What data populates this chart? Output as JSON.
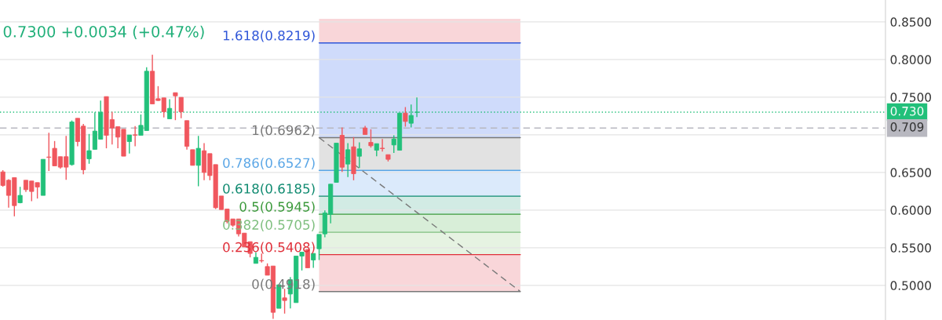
{
  "chart_data": {
    "type": "candlestick",
    "categories": [
      null,
      null,
      null,
      null,
      null,
      null,
      null,
      null,
      null,
      null,
      null,
      null,
      null,
      null,
      null,
      null,
      null,
      null,
      null,
      null,
      null,
      null,
      null,
      null,
      null,
      null,
      null,
      null,
      null,
      null,
      null,
      null,
      null,
      null,
      null,
      null,
      null,
      null,
      null,
      null,
      null,
      null,
      null,
      null,
      null,
      null,
      null,
      null,
      null,
      null,
      null,
      null,
      null,
      null,
      null,
      null,
      null,
      null,
      null,
      null,
      null,
      null,
      null,
      null,
      null,
      null,
      null,
      null,
      null,
      null,
      null,
      null,
      null,
      null,
      null,
      null,
      null,
      null,
      null,
      null,
      null,
      null,
      null,
      null,
      null,
      null,
      null,
      null,
      null,
      null,
      null,
      null,
      null,
      null,
      null,
      null,
      null,
      null,
      null,
      null,
      null,
      null,
      null,
      null,
      null,
      null,
      null,
      null,
      null,
      null,
      null,
      null,
      null,
      null,
      null,
      null,
      null,
      null,
      null,
      null,
      null,
      null,
      null,
      null,
      null,
      null,
      null,
      null,
      null,
      null,
      null,
      null,
      null,
      null,
      null,
      null,
      null,
      null,
      null,
      null,
      null,
      null,
      null,
      null,
      null,
      null,
      null,
      null,
      null,
      null,
      null,
      null,
      null,
      null
    ],
    "ohlc": [
      [
        0.6507,
        0.653,
        0.631,
        0.6327
      ],
      [
        0.6396,
        0.641,
        0.6031,
        0.6195
      ],
      [
        0.6431,
        0.6431,
        0.5917,
        0.6059
      ],
      [
        0.6097,
        0.6309,
        0.609,
        0.6195
      ],
      [
        0.6396,
        0.6396,
        0.624,
        0.6271
      ],
      [
        0.6386,
        0.6386,
        0.6118,
        0.6247
      ],
      [
        0.6365,
        0.6365,
        0.6153,
        0.6306
      ],
      [
        0.6195,
        0.6674,
        0.6195,
        0.6674
      ],
      [
        0.6705,
        0.7028,
        0.6518,
        0.67
      ],
      [
        0.682,
        0.6917,
        0.6587,
        0.6587
      ],
      [
        0.6709,
        0.6709,
        0.655,
        0.657
      ],
      [
        0.6709,
        0.6986,
        0.6403,
        0.657
      ],
      [
        0.6604,
        0.719,
        0.659,
        0.717
      ],
      [
        0.7219,
        0.7219,
        0.6848,
        0.691
      ],
      [
        0.7115,
        0.7143,
        0.6476,
        0.6535
      ],
      [
        0.6681,
        0.7011,
        0.6615,
        0.6789
      ],
      [
        0.6806,
        0.7299,
        0.6806,
        0.7049
      ],
      [
        0.6941,
        0.7455,
        0.6941,
        0.7299
      ],
      [
        0.7507,
        0.7507,
        0.682,
        0.6993
      ],
      [
        0.7202,
        0.7306,
        0.6872,
        0.709
      ],
      [
        0.7108,
        0.7108,
        0.682,
        0.6969
      ],
      [
        0.7073,
        0.7073,
        0.6716,
        0.6716
      ],
      [
        0.691,
        0.6997,
        0.675,
        0.6997
      ],
      [
        0.6999,
        0.7115,
        0.6848,
        0.6995
      ],
      [
        0.6993,
        0.727,
        0.6993,
        0.7125
      ],
      [
        0.7056,
        0.7896,
        0.7056,
        0.7844
      ],
      [
        0.7844,
        0.8063,
        0.741,
        0.741
      ],
      [
        0.7479,
        0.7646,
        0.745,
        0.7455
      ],
      [
        0.749,
        0.749,
        0.7229,
        0.7306
      ],
      [
        0.7212,
        0.7472,
        0.7212,
        0.7351
      ],
      [
        0.7559,
        0.7559,
        0.7194,
        0.7517
      ],
      [
        0.7497,
        0.7497,
        0.7219,
        0.7306
      ],
      [
        0.7188,
        0.7188,
        0.6802,
        0.6847
      ],
      [
        0.6802,
        0.6802,
        0.6594,
        0.6594
      ],
      [
        0.6594,
        0.6986,
        0.6316,
        0.682
      ],
      [
        0.6788,
        0.6889,
        0.6396,
        0.65
      ],
      [
        0.675,
        0.675,
        0.6396,
        0.6458
      ],
      [
        0.6604,
        0.6604,
        0.6014,
        0.6031
      ],
      [
        0.6187,
        0.6187,
        0.6007,
        0.6007
      ],
      [
        0.6014,
        0.6014,
        0.5823,
        0.5847
      ],
      [
        0.5882,
        0.5882,
        0.5778,
        0.5799
      ],
      [
        0.5882,
        0.5882,
        0.5649,
        0.5684
      ],
      [
        0.5694,
        0.5694,
        0.551,
        0.551
      ],
      [
        0.558,
        0.558,
        0.5372,
        0.5424
      ],
      [
        0.5292,
        0.5441,
        0.5292,
        0.5372
      ],
      [
        0.533,
        0.5424,
        0.5302,
        0.5325
      ],
      [
        0.525,
        0.5292,
        0.5135,
        0.5135
      ],
      [
        0.5257,
        0.5257,
        0.4556,
        0.4642
      ],
      [
        0.4695,
        0.5007,
        0.4695,
        0.5007
      ],
      [
        0.4834,
        0.4955,
        0.4625,
        0.4799
      ],
      [
        0.4885,
        0.5111,
        0.4694,
        0.5076
      ],
      [
        0.4771,
        0.5389,
        0.4771,
        0.5389
      ],
      [
        0.5389,
        0.5441,
        0.5198,
        0.5441
      ],
      [
        0.5476,
        0.5476,
        0.5233,
        0.5233
      ],
      [
        0.5337,
        0.5424,
        0.5233,
        0.5424
      ],
      [
        0.5486,
        0.5677,
        0.5337,
        0.5677
      ],
      [
        0.5684,
        0.5997,
        0.5639,
        0.5962
      ],
      [
        0.5944,
        0.6344,
        0.5823,
        0.6344
      ],
      [
        0.6368,
        0.6889,
        0.6368,
        0.6889
      ],
      [
        0.6993,
        0.7097,
        0.6507,
        0.6569
      ],
      [
        0.6611,
        0.6889,
        0.6438,
        0.6802
      ],
      [
        0.684,
        0.6969,
        0.6396,
        0.6483
      ],
      [
        0.6715,
        0.6899,
        0.6559,
        0.6813
      ],
      [
        0.709,
        0.7118,
        0.7003,
        0.7003
      ],
      [
        0.6899,
        0.7073,
        0.683,
        0.6854
      ],
      [
        0.6795,
        0.6882,
        0.6715,
        0.6882
      ],
      [
        0.6822,
        0.6944,
        0.6778,
        0.6816
      ],
      [
        0.6736,
        0.6736,
        0.6646,
        0.6674
      ],
      [
        0.6865,
        0.6993,
        0.676,
        0.6944
      ],
      [
        0.6795,
        0.7288,
        0.6795,
        0.7288
      ],
      [
        0.7288,
        0.7368,
        0.7108,
        0.7177
      ],
      [
        0.7153,
        0.7403,
        0.7097,
        0.7257
      ],
      [
        0.7299,
        0.7497,
        0.7236,
        0.73
      ],
      null,
      null,
      null,
      null,
      null,
      null,
      null,
      null,
      null,
      null,
      null,
      null,
      null,
      null,
      null,
      null,
      null,
      null,
      null,
      null,
      null,
      null,
      null,
      null,
      null,
      null,
      null,
      null,
      null,
      null,
      null,
      null,
      null,
      null,
      null,
      null,
      null,
      null,
      null,
      null,
      null,
      null,
      null,
      null,
      null,
      null,
      null,
      null,
      null,
      null,
      null,
      null,
      null,
      null,
      null,
      null,
      null,
      null,
      null,
      null,
      null,
      null,
      null,
      null,
      null,
      null,
      null,
      null,
      null,
      null,
      null,
      null,
      null,
      null,
      null,
      null,
      null,
      null,
      null,
      null,
      null
    ],
    "colors": [
      "#f0575e",
      "#f0575e",
      "#f0575e",
      "#22c07a",
      "#f0575e",
      "#f0575e",
      "#f0575e",
      "#22c07a",
      "#f0575e",
      "#f0575e",
      "#f0575e",
      "#f0575e",
      "#22c07a",
      "#f0575e",
      "#f0575e",
      "#22c07a",
      "#22c07a",
      "#22c07a",
      "#f0575e",
      "#f0575e",
      "#f0575e",
      "#f0575e",
      "#22c07a",
      "#f0575e",
      "#22c07a",
      "#22c07a",
      "#f0575e",
      "#f0575e",
      "#f0575e",
      "#22c07a",
      "#f0575e",
      "#f0575e",
      "#f0575e",
      "#f0575e",
      "#22c07a",
      "#f0575e",
      "#f0575e",
      "#f0575e",
      "#f0575e",
      "#f0575e",
      "#f0575e",
      "#f0575e",
      "#f0575e",
      "#f0575e",
      "#22c07a",
      "#f0575e",
      "#f0575e",
      "#f0575e",
      "#22c07a",
      "#f0575e",
      "#22c07a",
      "#22c07a",
      "#22c07a",
      "#f0575e",
      "#22c07a",
      "#22c07a",
      "#22c07a",
      "#22c07a",
      "#22c07a",
      "#f0575e",
      "#22c07a",
      "#f0575e",
      "#22c07a",
      "#f0575e",
      "#f0575e",
      "#22c07a",
      "#f0575e",
      "#f0575e",
      "#22c07a",
      "#22c07a",
      "#f0575e",
      "#22c07a",
      "#22c07a",
      null,
      null,
      null,
      null,
      null,
      null,
      null,
      null,
      null,
      null,
      null,
      null,
      null,
      null,
      null,
      null,
      null,
      null,
      null,
      null,
      null,
      null,
      null,
      null,
      null,
      null,
      null,
      null,
      null,
      null,
      null,
      null,
      null,
      null,
      null,
      null,
      null,
      null,
      null,
      null,
      null,
      null,
      null,
      null,
      null,
      null,
      null,
      null,
      null,
      null,
      null,
      null,
      null,
      null,
      null,
      null,
      null,
      null,
      null,
      null,
      null,
      null,
      null,
      null,
      null,
      null,
      null,
      null,
      null,
      null,
      null,
      null,
      null,
      null,
      null,
      null,
      null,
      null,
      null,
      null,
      null
    ],
    "series": [
      {
        "type": "line",
        "color": "#787878",
        "line_style": "dashed",
        "values": [
          null,
          null,
          null,
          null,
          null,
          null,
          null,
          null,
          null,
          null,
          null,
          null,
          null,
          null,
          null,
          null,
          null,
          null,
          null,
          null,
          null,
          null,
          null,
          null,
          null,
          null,
          null,
          null,
          null,
          null,
          null,
          null,
          null,
          null,
          null,
          null,
          null,
          null,
          null,
          null,
          null,
          null,
          null,
          null,
          null,
          null,
          null,
          null,
          null,
          null,
          null,
          null,
          null,
          null,
          null,
          0.6962,
          null,
          null,
          null,
          null,
          null,
          null,
          null,
          null,
          null,
          null,
          null,
          null,
          null,
          null,
          null,
          null,
          null,
          null,
          null,
          null,
          null,
          null,
          null,
          null,
          null,
          null,
          null,
          null,
          null,
          null,
          null,
          null,
          null,
          null,
          0.4918,
          null,
          null,
          null,
          null,
          null,
          null,
          null,
          null,
          null,
          null,
          null,
          null,
          null,
          null,
          null,
          null,
          null,
          null,
          null,
          null,
          null,
          null,
          null,
          null,
          null,
          null,
          null,
          null,
          null,
          null,
          null,
          null,
          null,
          null,
          null,
          null,
          null,
          null,
          null,
          null,
          null,
          null,
          null,
          null,
          null,
          null,
          null,
          null,
          null,
          null,
          null,
          null,
          null,
          null,
          null,
          null,
          null,
          null,
          null,
          null,
          null,
          null,
          null
        ]
      }
    ],
    "ylim": [
      0.454,
      0.879
    ],
    "yticks": [
      {
        "value": 0.5,
        "label": "0.5000"
      },
      {
        "value": 0.55,
        "label": "0.5500"
      },
      {
        "value": 0.6,
        "label": "0.6000"
      },
      {
        "value": 0.65,
        "label": "0.6500"
      },
      {
        "value": 0.7,
        "label": null
      },
      {
        "value": 0.75,
        "label": "0.7500"
      },
      {
        "value": 0.8,
        "label": "0.8000"
      },
      {
        "value": 0.85,
        "label": "0.8500"
      }
    ],
    "tick_labels": "y",
    "grid": "y",
    "bands": [
      {
        "axis": "y",
        "from": 0.8219,
        "to": 0.854,
        "color": "#f9d6d9"
      },
      {
        "axis": "y",
        "from": 0.6962,
        "to": 0.8219,
        "color": "#cfdbfb"
      },
      {
        "axis": "y",
        "from": 0.6527,
        "to": 0.6962,
        "color": "#e2e2e2"
      },
      {
        "axis": "y",
        "from": 0.6185,
        "to": 0.6527,
        "color": "#dbeafb"
      },
      {
        "axis": "y",
        "from": 0.5945,
        "to": 0.6185,
        "color": "#d2ebe4"
      },
      {
        "axis": "y",
        "from": 0.5705,
        "to": 0.5945,
        "color": "#d8eed8"
      },
      {
        "axis": "y",
        "from": 0.5408,
        "to": 0.5705,
        "color": "#e6f3e2"
      },
      {
        "axis": "y",
        "from": 0.4918,
        "to": 0.5408,
        "color": "#f9d6d9"
      }
    ],
    "ref_lines": [
      {
        "axis": "y",
        "value": 0.8219,
        "label": "1.618(0.8219)",
        "color": "#2f56d8",
        "line_style": "solid"
      },
      {
        "axis": "y",
        "value": 0.6962,
        "label": "1(0.6962)",
        "color": "#787878",
        "line_style": "solid"
      },
      {
        "axis": "y",
        "value": 0.6527,
        "label": "0.786(0.6527)",
        "color": "#5aa6e6",
        "line_style": "solid"
      },
      {
        "axis": "y",
        "value": 0.6185,
        "label": "0.618(0.6185)",
        "color": "#0f8a70",
        "line_style": "solid"
      },
      {
        "axis": "y",
        "value": 0.5945,
        "label": "0.5(0.5945)",
        "color": "#3c9a3c",
        "line_style": "solid"
      },
      {
        "axis": "y",
        "value": 0.5705,
        "label": "0.382(0.5705)",
        "color": "#7fbf7f",
        "line_style": "solid"
      },
      {
        "axis": "y",
        "value": 0.5408,
        "label": "0.236(0.5408)",
        "color": "#e0303a",
        "line_style": "solid"
      },
      {
        "axis": "y",
        "value": 0.4918,
        "label": "0(0.4918)",
        "color": "#787878",
        "line_style": "solid"
      },
      {
        "axis": "y",
        "value": 0.73,
        "label": "0.730",
        "color": "#22c07a",
        "line_style": "dotted"
      },
      {
        "axis": "y",
        "value": 0.709,
        "label": "0.709",
        "color": "#b8b8c0",
        "line_style": "dashed"
      }
    ],
    "annotations": [
      "0.7300 +0.0034 (+0.47%)"
    ]
  }
}
